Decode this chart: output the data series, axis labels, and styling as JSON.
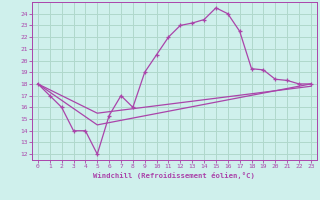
{
  "xlabel": "Windchill (Refroidissement éolien,°C)",
  "xlim": [
    -0.5,
    23.5
  ],
  "ylim": [
    11.5,
    25.0
  ],
  "xticks": [
    0,
    1,
    2,
    3,
    4,
    5,
    6,
    7,
    8,
    9,
    10,
    11,
    12,
    13,
    14,
    15,
    16,
    17,
    18,
    19,
    20,
    21,
    22,
    23
  ],
  "yticks": [
    12,
    13,
    14,
    15,
    16,
    17,
    18,
    19,
    20,
    21,
    22,
    23,
    24
  ],
  "bg_color": "#cff0ec",
  "grid_color": "#b0d8cc",
  "line_color": "#aa44aa",
  "line1": {
    "x": [
      0,
      1,
      2,
      3,
      4,
      5,
      6,
      7,
      8,
      9,
      10,
      11,
      12,
      13,
      14,
      15,
      16,
      17,
      18,
      19,
      20,
      21,
      22,
      23
    ],
    "y": [
      18,
      17,
      16,
      14,
      14,
      12,
      15.3,
      17,
      16,
      19,
      20.5,
      22,
      23,
      23.2,
      23.5,
      24.5,
      24,
      22.5,
      19.3,
      19.2,
      18.4,
      18.3,
      18,
      18
    ]
  },
  "line2": {
    "x": [
      0,
      5,
      23
    ],
    "y": [
      18,
      14.5,
      18
    ]
  },
  "line3": {
    "x": [
      0,
      5,
      23
    ],
    "y": [
      18,
      15.5,
      17.8
    ]
  }
}
